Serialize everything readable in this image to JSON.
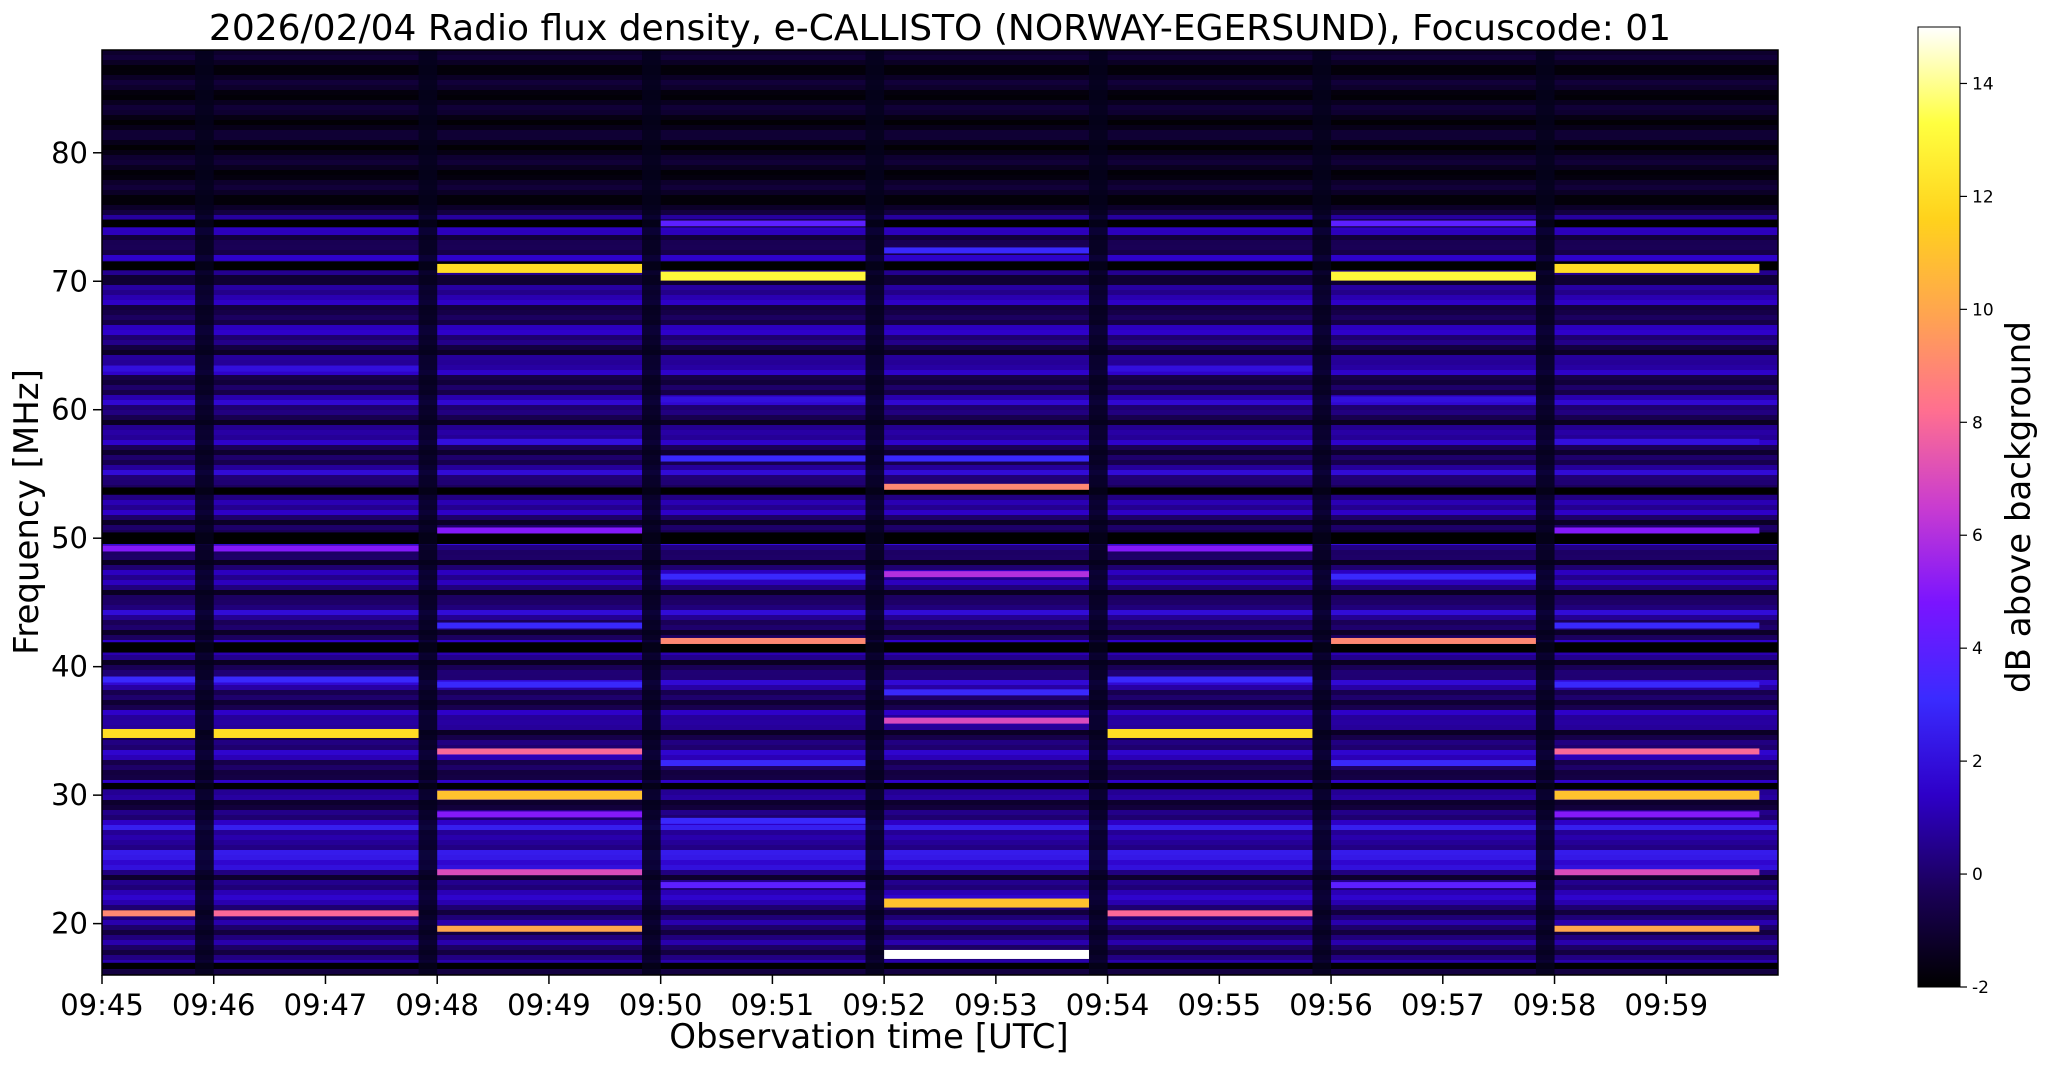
{
  "chart_data": {
    "type": "heatmap",
    "title": "2026/02/04  Radio flux density, e-CALLISTO (NORWAY-EGERSUND), Focuscode: 01",
    "xlabel": "Observation time [UTC]",
    "ylabel": "Frequency [MHz]",
    "x_ticks": [
      "09:45",
      "09:46",
      "09:47",
      "09:48",
      "09:49",
      "09:50",
      "09:51",
      "09:52",
      "09:53",
      "09:54",
      "09:55",
      "09:56",
      "09:57",
      "09:58",
      "09:59"
    ],
    "xlim": [
      "09:45",
      "10:00"
    ],
    "y_ticks": [
      20,
      30,
      40,
      50,
      60,
      70,
      80
    ],
    "ylim": [
      16,
      88
    ],
    "colorbar": {
      "label": "dB above background",
      "ticks": [
        -2,
        0,
        2,
        4,
        6,
        8,
        10,
        12,
        14
      ],
      "range": [
        -2,
        15
      ],
      "colormap": "gnuplot2",
      "colors": [
        "#000000",
        "#1a0058",
        "#2e00c8",
        "#3a2bff",
        "#7a14ff",
        "#c93cd0",
        "#ff6f90",
        "#ffa450",
        "#ffd21c",
        "#ffff40",
        "#ffffff"
      ]
    },
    "grid": false,
    "sweep_segments": [
      {
        "start": "09:45:00",
        "end": "09:45:50",
        "lines": [
          {
            "freq": 20.8,
            "db": 9
          },
          {
            "freq": 34.8,
            "db": 12
          },
          {
            "freq": 39.0,
            "db": 3
          },
          {
            "freq": 49.2,
            "db": 5
          },
          {
            "freq": 63.2,
            "db": 2
          }
        ]
      },
      {
        "start": "09:46:00",
        "end": "09:47:50",
        "lines": [
          {
            "freq": 20.8,
            "db": 8
          },
          {
            "freq": 34.8,
            "db": 12
          },
          {
            "freq": 39.0,
            "db": 3
          },
          {
            "freq": 49.2,
            "db": 5
          },
          {
            "freq": 63.2,
            "db": 2
          }
        ]
      },
      {
        "start": "09:48:00",
        "end": "09:49:50",
        "lines": [
          {
            "freq": 19.6,
            "db": 10
          },
          {
            "freq": 24.0,
            "db": 7
          },
          {
            "freq": 28.5,
            "db": 5
          },
          {
            "freq": 30.0,
            "db": 11
          },
          {
            "freq": 33.4,
            "db": 8
          },
          {
            "freq": 38.6,
            "db": 3
          },
          {
            "freq": 43.2,
            "db": 3
          },
          {
            "freq": 50.6,
            "db": 5
          },
          {
            "freq": 57.5,
            "db": 2
          },
          {
            "freq": 71.0,
            "db": 12
          }
        ]
      },
      {
        "start": "09:50:00",
        "end": "09:51:50",
        "lines": [
          {
            "freq": 23.0,
            "db": 4
          },
          {
            "freq": 28.0,
            "db": 3
          },
          {
            "freq": 32.5,
            "db": 3
          },
          {
            "freq": 42.0,
            "db": 9
          },
          {
            "freq": 47.0,
            "db": 3
          },
          {
            "freq": 56.2,
            "db": 3
          },
          {
            "freq": 60.8,
            "db": 2
          },
          {
            "freq": 70.4,
            "db": 13
          },
          {
            "freq": 74.5,
            "db": 4
          }
        ]
      },
      {
        "start": "09:52:00",
        "end": "09:53:50",
        "lines": [
          {
            "freq": 17.6,
            "db": 15
          },
          {
            "freq": 21.6,
            "db": 11
          },
          {
            "freq": 35.8,
            "db": 7
          },
          {
            "freq": 38.0,
            "db": 3
          },
          {
            "freq": 47.2,
            "db": 6
          },
          {
            "freq": 54.0,
            "db": 9
          },
          {
            "freq": 56.2,
            "db": 3
          },
          {
            "freq": 72.4,
            "db": 3
          }
        ]
      },
      {
        "start": "09:54:00",
        "end": "09:55:50",
        "lines": [
          {
            "freq": 20.8,
            "db": 8
          },
          {
            "freq": 34.8,
            "db": 12
          },
          {
            "freq": 39.0,
            "db": 3
          },
          {
            "freq": 49.2,
            "db": 5
          },
          {
            "freq": 63.2,
            "db": 2
          }
        ]
      },
      {
        "start": "09:56:00",
        "end": "09:57:50",
        "lines": [
          {
            "freq": 23.0,
            "db": 4
          },
          {
            "freq": 32.5,
            "db": 3
          },
          {
            "freq": 42.0,
            "db": 9
          },
          {
            "freq": 47.0,
            "db": 3
          },
          {
            "freq": 60.8,
            "db": 2
          },
          {
            "freq": 70.4,
            "db": 13
          },
          {
            "freq": 74.5,
            "db": 4
          }
        ]
      },
      {
        "start": "09:58:00",
        "end": "09:59:50",
        "lines": [
          {
            "freq": 19.6,
            "db": 10
          },
          {
            "freq": 24.0,
            "db": 7
          },
          {
            "freq": 28.5,
            "db": 5
          },
          {
            "freq": 30.0,
            "db": 11
          },
          {
            "freq": 33.4,
            "db": 8
          },
          {
            "freq": 38.6,
            "db": 3
          },
          {
            "freq": 43.2,
            "db": 3
          },
          {
            "freq": 50.6,
            "db": 5
          },
          {
            "freq": 57.5,
            "db": 2
          },
          {
            "freq": 71.0,
            "db": 12
          }
        ]
      }
    ]
  }
}
